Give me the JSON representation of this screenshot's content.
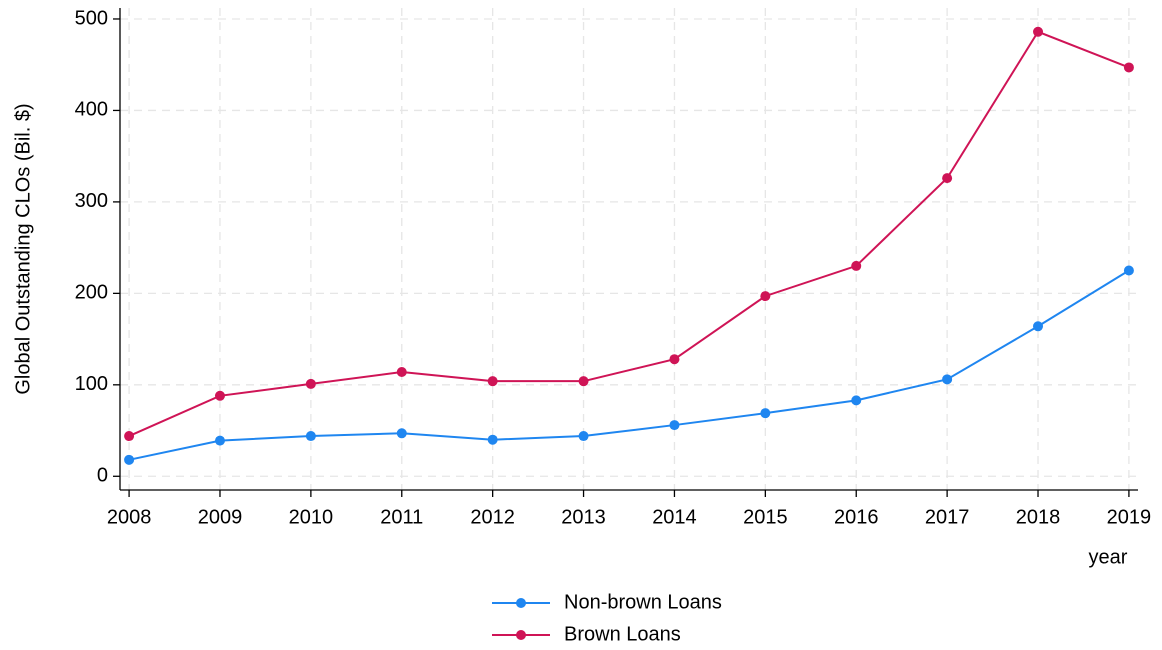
{
  "chart_data": {
    "type": "line",
    "x": [
      2008,
      2009,
      2010,
      2011,
      2012,
      2013,
      2014,
      2015,
      2016,
      2017,
      2018,
      2019
    ],
    "x_label": "year",
    "y_label": "Global Outstanding CLOs (Bil. $)",
    "series": [
      {
        "name": "Non-brown Loans",
        "color": "#1f86f0",
        "values": [
          18,
          39,
          44,
          47,
          40,
          44,
          56,
          69,
          83,
          106,
          164,
          225
        ]
      },
      {
        "name": "Brown Loans",
        "color": "#cf1456",
        "values": [
          44,
          88,
          101,
          114,
          104,
          104,
          128,
          197,
          230,
          326,
          486,
          447
        ]
      }
    ],
    "xlim": [
      2007.9,
      2019.1
    ],
    "xticks": [
      2008,
      2009,
      2010,
      2011,
      2012,
      2013,
      2014,
      2015,
      2016,
      2017,
      2018,
      2019
    ],
    "ylim": [
      -15,
      512
    ],
    "yticks": [
      0,
      100,
      200,
      300,
      400,
      500
    ],
    "grid": true,
    "legend": "bottom"
  }
}
